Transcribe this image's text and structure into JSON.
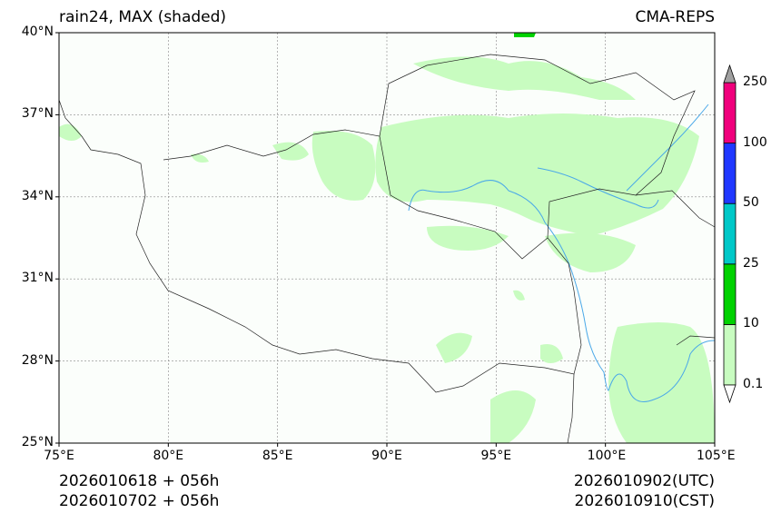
{
  "title_left": "rain24, MAX (shaded)",
  "title_right": "CMA-REPS",
  "map": {
    "lon_range": [
      75,
      105
    ],
    "lat_range": [
      25,
      40
    ],
    "lon_ticks": [
      75,
      80,
      85,
      90,
      95,
      100,
      105
    ],
    "lon_labels": [
      "75°E",
      "80°E",
      "85°E",
      "90°E",
      "95°E",
      "100°E",
      "105°E"
    ],
    "lat_ticks": [
      25,
      28,
      31,
      34,
      37,
      40
    ],
    "lat_labels": [
      "25°N",
      "28°N",
      "31°N",
      "34°N",
      "37°N",
      "40°N"
    ],
    "land_color": "#fbfefb",
    "shade_color": "#c8fcc0",
    "river_color": "#4aa8e8"
  },
  "colorbar": {
    "levels": [
      "0.1",
      "10",
      "25",
      "50",
      "100",
      "250"
    ],
    "colors": [
      "#c8fcc0",
      "#00d200",
      "#00c8c8",
      "#2038ff",
      "#f0007c"
    ],
    "over_color": "#a0a0a0",
    "under_color": "#ffffff"
  },
  "footer": {
    "init_utc": "2026010618  +  056h",
    "init_cst": "2026010702  +  056h",
    "valid_utc": "2026010902(UTC)",
    "valid_cst": "2026010910(CST)"
  }
}
